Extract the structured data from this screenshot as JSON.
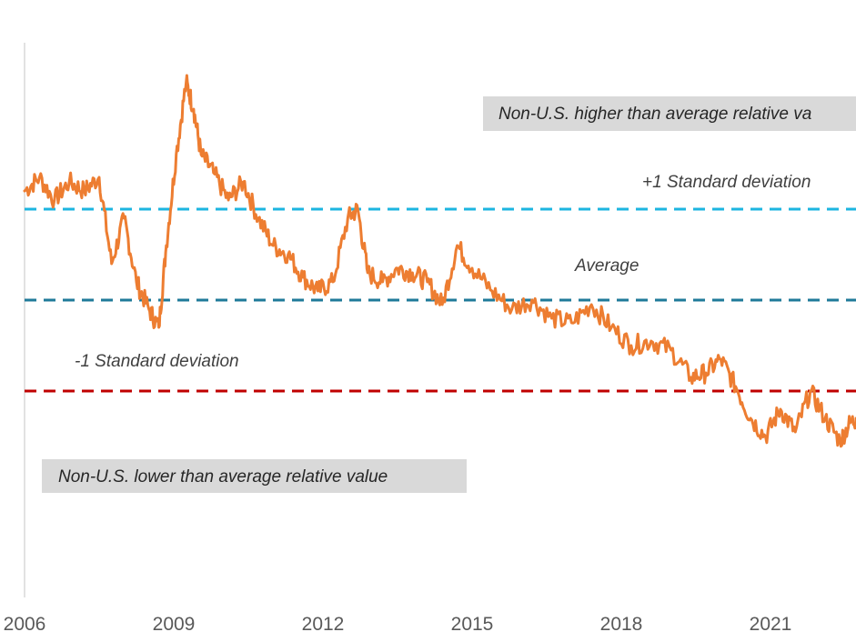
{
  "chart_data": {
    "type": "line",
    "title": "",
    "xlabel": "",
    "ylabel": "",
    "x_tick_labels": [
      "2006",
      "2009",
      "2012",
      "2015",
      "2018",
      "2021"
    ],
    "x_ticks": [
      2006,
      2009,
      2012,
      2015,
      2018,
      2021
    ],
    "xlim": [
      2006,
      2022.8
    ],
    "ylim": [
      -3.0,
      3.0
    ],
    "series": [
      {
        "name": "Relative value",
        "color": "#ED7D31",
        "x": [
          2006.0,
          2006.3,
          2006.6,
          2006.9,
          2007.2,
          2007.5,
          2007.75,
          2008.0,
          2008.25,
          2008.5,
          2008.7,
          2008.85,
          2009.05,
          2009.25,
          2009.4,
          2009.55,
          2009.8,
          2010.1,
          2010.4,
          2010.7,
          2011.0,
          2011.3,
          2011.6,
          2011.9,
          2012.2,
          2012.5,
          2012.7,
          2012.9,
          2013.2,
          2013.5,
          2013.8,
          2014.1,
          2014.4,
          2014.7,
          2015.0,
          2015.4,
          2015.8,
          2016.2,
          2016.6,
          2017.0,
          2017.4,
          2017.8,
          2018.2,
          2018.6,
          2019.0,
          2019.4,
          2019.7,
          2020.0,
          2020.3,
          2020.6,
          2020.9,
          2021.2,
          2021.5,
          2021.8,
          2022.1,
          2022.4,
          2022.6,
          2022.8
        ],
        "values": [
          1.2,
          1.35,
          1.1,
          1.3,
          1.2,
          1.35,
          0.4,
          0.9,
          0.2,
          -0.1,
          -0.3,
          0.6,
          1.6,
          2.4,
          2.1,
          1.6,
          1.4,
          1.1,
          1.3,
          0.9,
          0.6,
          0.5,
          0.25,
          0.1,
          0.2,
          0.9,
          1.0,
          0.3,
          0.2,
          0.35,
          0.3,
          0.2,
          -0.05,
          0.6,
          0.35,
          0.1,
          -0.1,
          0.0,
          -0.2,
          -0.25,
          -0.05,
          -0.3,
          -0.5,
          -0.45,
          -0.55,
          -0.85,
          -0.8,
          -0.65,
          -0.95,
          -1.3,
          -1.5,
          -1.2,
          -1.45,
          -1.0,
          -1.3,
          -1.55,
          -1.35,
          -1.3
        ]
      }
    ],
    "reference_lines": [
      {
        "name": "+1 Standard deviation",
        "value": 1.0,
        "color": "#1CB5E0"
      },
      {
        "name": "Average",
        "value": 0.0,
        "color": "#1F7A99"
      },
      {
        "name": "-1 Standard deviation",
        "value": -1.0,
        "color": "#C00000"
      }
    ],
    "annotations": {
      "plus_sd": "+1 Standard deviation",
      "average": "Average",
      "minus_sd": "-1 Standard deviation",
      "upper_box": "Non-U.S. higher than average relative va",
      "lower_box": "Non-U.S. lower than average relative value"
    }
  },
  "colors": {
    "series": "#ED7D31",
    "box_fill": "#D9D9D9",
    "axis": "#D9D9D9"
  }
}
